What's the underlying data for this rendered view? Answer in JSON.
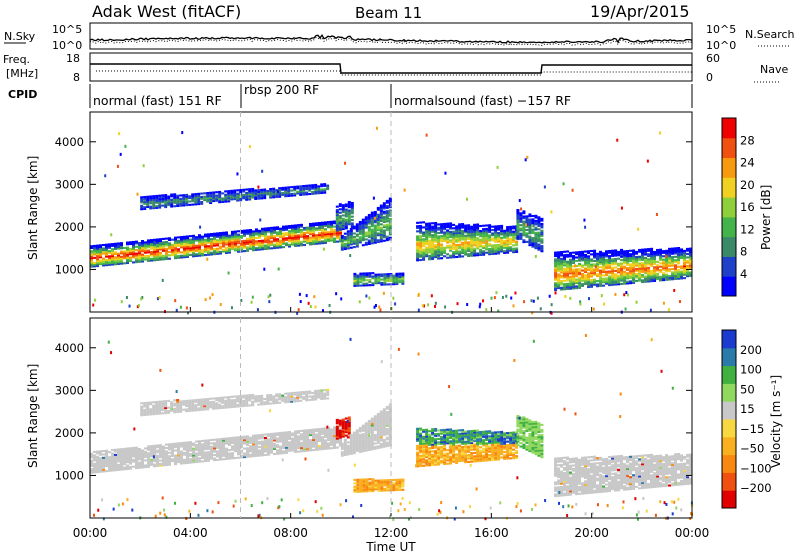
{
  "header": {
    "site": "Adak West (fitACF)",
    "beam": "Beam 11",
    "date": "19/Apr/2015"
  },
  "noise_panel": {
    "left_label": "N.Sky",
    "right_label": "N.Search",
    "left_ticks": [
      "10^5",
      "10^0"
    ],
    "right_ticks": [
      "10^5",
      "10^0"
    ]
  },
  "freq_panel": {
    "left_label_1": "Freq.",
    "left_label_2": "[MHz]",
    "right_label": "Nave",
    "left_ticks": [
      "18",
      "8"
    ],
    "right_ticks": [
      "60",
      "0"
    ]
  },
  "cpid_panel": {
    "label": "CPID",
    "segments": [
      {
        "label": "normal (fast) 151 RF",
        "start_h": 0,
        "end_h": 6
      },
      {
        "label": "rbsp 200 RF",
        "start_h": 6,
        "end_h": 12
      },
      {
        "label": "normalsound (fast) −157 RF",
        "start_h": 12,
        "end_h": 24
      }
    ]
  },
  "x_axis": {
    "title": "Time UT",
    "ticks": [
      "00:00",
      "04:00",
      "08:00",
      "12:00",
      "16:00",
      "20:00",
      "00:00"
    ]
  },
  "colors": {
    "ground_scatter": "#c8c8c8"
  },
  "chart_data": [
    {
      "type": "heatmap",
      "title": "Power",
      "xlabel": "Time UT",
      "ylabel": "Slant Range [km]",
      "xlim_hours": [
        0,
        24
      ],
      "ylim": [
        0,
        4700
      ],
      "yticks": [
        "1000",
        "2000",
        "3000",
        "4000"
      ],
      "colorbar": {
        "label": "Power [dB]",
        "ticks": [
          "28",
          "24",
          "20",
          "16",
          "12",
          "8",
          "4"
        ],
        "colors": [
          "#0000ff",
          "#1f40c8",
          "#3a8a6a",
          "#44b44a",
          "#8fd03a",
          "#f0d020",
          "#f89a10",
          "#f05010",
          "#f00000"
        ]
      },
      "regions": [
        {
          "x": [
            0.0,
            10.0
          ],
          "y1": [
            1050,
            1650
          ],
          "y2": [
            1550,
            2150
          ],
          "peak": 28
        },
        {
          "x": [
            2.0,
            9.5
          ],
          "y1": [
            2400,
            2800
          ],
          "y2": [
            2700,
            3000
          ],
          "peak": 8
        },
        {
          "x": [
            9.8,
            10.5
          ],
          "y1": [
            1900,
            2000
          ],
          "y2": [
            2500,
            2600
          ],
          "peak": 10
        },
        {
          "x": [
            10.0,
            12.0
          ],
          "y1": [
            1450,
            1700
          ],
          "y2": [
            1800,
            2700
          ],
          "peak": 12
        },
        {
          "x": [
            10.5,
            12.5
          ],
          "y1": [
            600,
            650
          ],
          "y2": [
            900,
            900
          ],
          "peak": 14
        },
        {
          "x": [
            13.0,
            17.0
          ],
          "y1": [
            1200,
            1400
          ],
          "y2": [
            2100,
            2000
          ],
          "peak": 20
        },
        {
          "x": [
            17.0,
            18.0
          ],
          "y1": [
            1700,
            1400
          ],
          "y2": [
            2400,
            2200
          ],
          "peak": 10
        },
        {
          "x": [
            18.5,
            24.0
          ],
          "y1": [
            500,
            800
          ],
          "y2": [
            1400,
            1500
          ],
          "peak": 24
        }
      ]
    },
    {
      "type": "heatmap",
      "title": "Velocity",
      "xlabel": "Time UT",
      "ylabel": "Slant Range [km]",
      "xlim_hours": [
        0,
        24
      ],
      "ylim": [
        0,
        4700
      ],
      "yticks": [
        "1000",
        "2000",
        "3000",
        "4000"
      ],
      "colorbar": {
        "label": "Velocity [m s⁻¹]",
        "ticks": [
          "200",
          "100",
          "50",
          "15",
          "−15",
          "−50",
          "−100",
          "−200"
        ],
        "colors": [
          "#e00000",
          "#f05010",
          "#f88810",
          "#f8b020",
          "#f8d840",
          "#c8c8c8",
          "#90d860",
          "#40b040",
          "#2a7aaa",
          "#1a3ad0"
        ]
      },
      "regions": [
        {
          "x": [
            0.0,
            10.0
          ],
          "y1": [
            1050,
            1650
          ],
          "y2": [
            1550,
            2150
          ],
          "class": "ground"
        },
        {
          "x": [
            2.0,
            9.5
          ],
          "y1": [
            2400,
            2800
          ],
          "y2": [
            2700,
            3000
          ],
          "class": "ground"
        },
        {
          "x": [
            9.8,
            10.3
          ],
          "y1": [
            1850,
            1950
          ],
          "y2": [
            2300,
            2350
          ],
          "class": "negative_strong"
        },
        {
          "x": [
            10.0,
            12.0
          ],
          "y1": [
            1450,
            1700
          ],
          "y2": [
            1800,
            2700
          ],
          "class": "ground"
        },
        {
          "x": [
            10.5,
            12.5
          ],
          "y1": [
            600,
            650
          ],
          "y2": [
            900,
            900
          ],
          "class": "negative"
        },
        {
          "x": [
            13.0,
            17.0
          ],
          "y1": [
            1200,
            1400
          ],
          "y2": [
            2100,
            2000
          ],
          "class": "mixed"
        },
        {
          "x": [
            17.0,
            18.0
          ],
          "y1": [
            1700,
            1400
          ],
          "y2": [
            2400,
            2200
          ],
          "class": "positive"
        },
        {
          "x": [
            18.5,
            24.0
          ],
          "y1": [
            500,
            800
          ],
          "y2": [
            1400,
            1500
          ],
          "class": "ground"
        }
      ]
    }
  ]
}
